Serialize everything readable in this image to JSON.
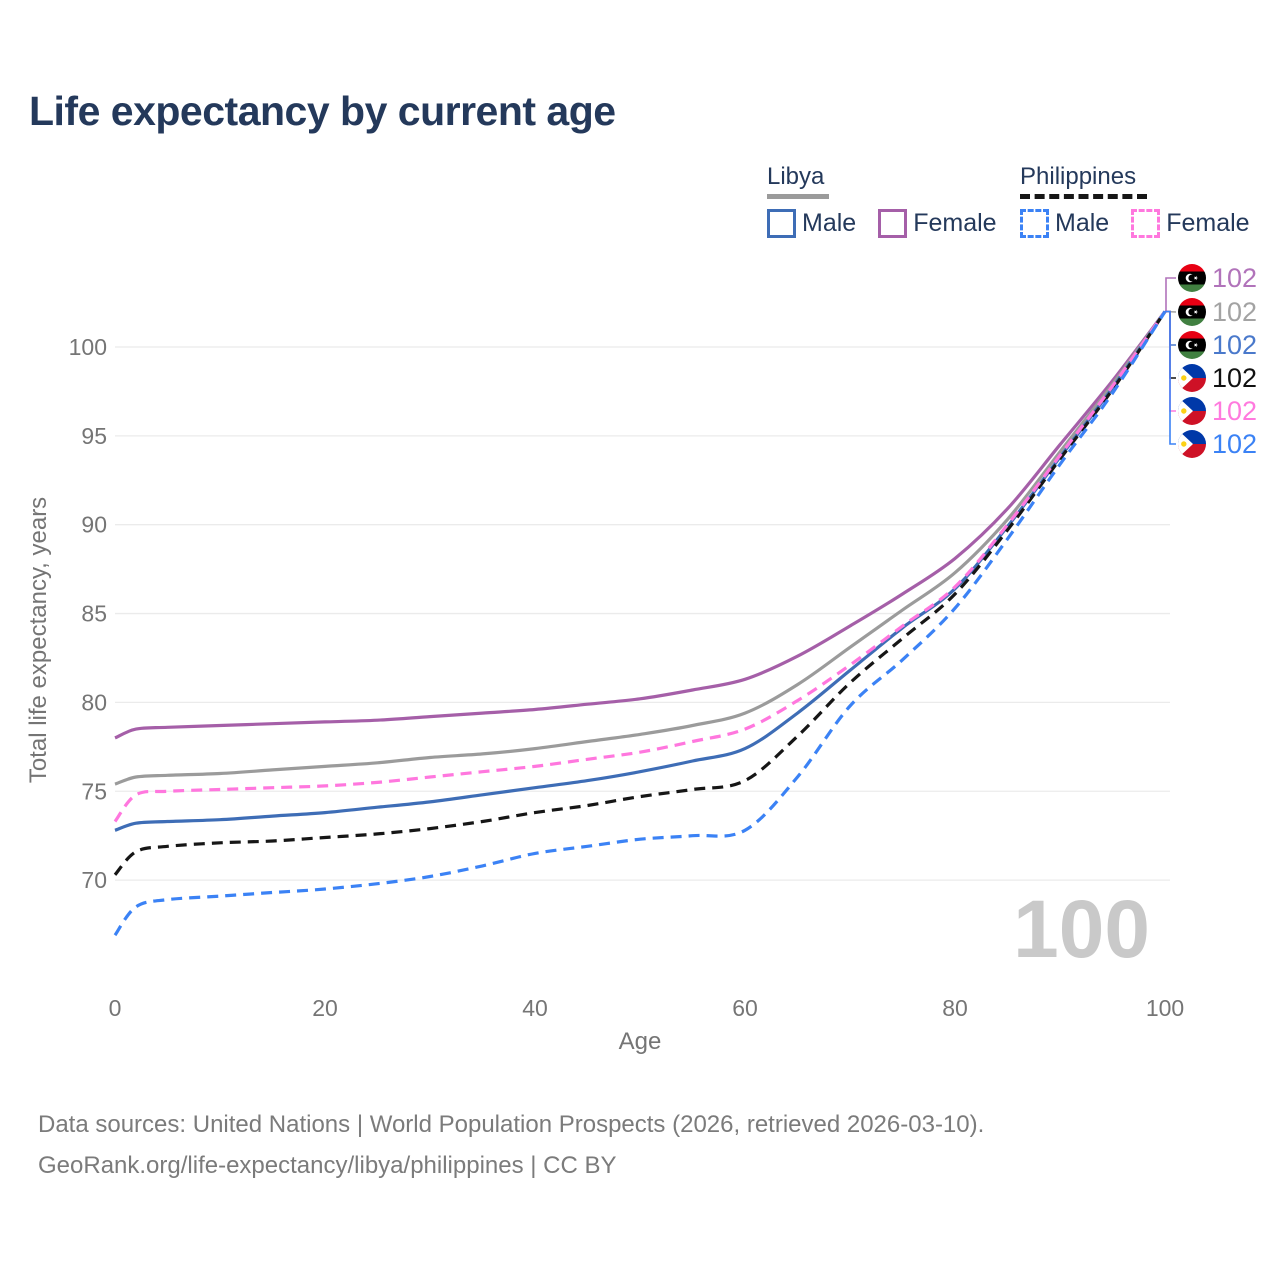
{
  "title": "Life expectancy by current age",
  "watermark": "100",
  "legend": {
    "libya": {
      "label": "Libya",
      "male": "Male",
      "female": "Female"
    },
    "philippines": {
      "label": "Philippines",
      "male": "Male",
      "female": "Female"
    }
  },
  "footer": {
    "line1": "Data sources: United Nations | World Population Prospects (2026, retrieved 2026-03-10).",
    "line2": "GeoRank.org/life-expectancy/libya/philippines | CC BY"
  },
  "colors": {
    "libya_female": "#a55fa8",
    "libya_both": "#9b9b9b",
    "libya_male": "#3e6db6",
    "ph_female": "#ff77de",
    "ph_both": "#161616",
    "ph_male": "#3b82f5",
    "title_text": "#24395b",
    "axis_text": "#757575",
    "grid": "#ebebeb",
    "watermark": "#c9c9c9",
    "footer_text": "#7b7b7b"
  },
  "chart_data": {
    "type": "line",
    "title": "Life expectancy by current age",
    "xlabel": "Age",
    "ylabel": "Total life expectancy, years",
    "x_ticks": [
      0,
      20,
      40,
      60,
      80,
      100
    ],
    "y_ticks": [
      70,
      75,
      80,
      85,
      90,
      95,
      100
    ],
    "xlim": [
      0,
      100
    ],
    "ylim": [
      66,
      103
    ],
    "grid": "horizontal-only",
    "legend_position": "top-right",
    "hover_age_indicator": "100",
    "x": [
      0,
      2,
      5,
      10,
      15,
      20,
      25,
      30,
      35,
      40,
      45,
      50,
      55,
      60,
      65,
      70,
      75,
      80,
      85,
      90,
      95,
      100
    ],
    "series": [
      {
        "name": "Libya Female",
        "key": "libya_female",
        "country": "Libya",
        "sex": "Female",
        "style": "solid",
        "color": "#a55fa8",
        "end_value": 102,
        "values": [
          78.0,
          78.5,
          78.6,
          78.7,
          78.8,
          78.9,
          79.0,
          79.2,
          79.4,
          79.6,
          79.9,
          80.2,
          80.7,
          81.3,
          82.6,
          84.3,
          86.1,
          88.1,
          90.9,
          94.5,
          98.1,
          102
        ]
      },
      {
        "name": "Libya Both sexes",
        "key": "libya_both",
        "country": "Libya",
        "sex": "Both",
        "style": "solid",
        "color": "#9b9b9b",
        "end_value": 102,
        "values": [
          75.4,
          75.8,
          75.9,
          76.0,
          76.2,
          76.4,
          76.6,
          76.9,
          77.1,
          77.4,
          77.8,
          78.2,
          78.7,
          79.4,
          81.0,
          83.1,
          85.2,
          87.3,
          90.3,
          94.1,
          97.9,
          102
        ]
      },
      {
        "name": "Libya Male",
        "key": "libya_male",
        "country": "Libya",
        "sex": "Male",
        "style": "solid",
        "color": "#3e6db6",
        "end_value": 102,
        "values": [
          72.8,
          73.2,
          73.3,
          73.4,
          73.6,
          73.8,
          74.1,
          74.4,
          74.8,
          75.2,
          75.6,
          76.1,
          76.7,
          77.4,
          79.4,
          81.8,
          84.2,
          86.4,
          89.9,
          93.8,
          97.7,
          102
        ]
      },
      {
        "name": "Philippines Both sexes",
        "key": "ph_both",
        "country": "Philippines",
        "sex": "Both",
        "style": "dashed",
        "color": "#161616",
        "end_value": 102,
        "values": [
          70.3,
          71.6,
          71.9,
          72.1,
          72.2,
          72.4,
          72.6,
          72.9,
          73.3,
          73.8,
          74.2,
          74.7,
          75.1,
          75.6,
          78.1,
          81.1,
          83.6,
          86.1,
          89.7,
          93.7,
          97.6,
          102
        ]
      },
      {
        "name": "Philippines Female",
        "key": "ph_female",
        "country": "Philippines",
        "sex": "Female",
        "style": "dashed",
        "color": "#ff77de",
        "end_value": 102,
        "values": [
          73.3,
          74.8,
          75.0,
          75.1,
          75.2,
          75.3,
          75.5,
          75.8,
          76.1,
          76.4,
          76.8,
          77.2,
          77.8,
          78.5,
          80.1,
          82.1,
          84.3,
          86.5,
          90.0,
          93.9,
          97.8,
          102
        ]
      },
      {
        "name": "Philippines Male",
        "key": "ph_male",
        "country": "Philippines",
        "sex": "Male",
        "style": "dashed",
        "color": "#3b82f5",
        "end_value": 102,
        "values": [
          66.9,
          68.5,
          68.9,
          69.1,
          69.3,
          69.5,
          69.8,
          70.2,
          70.8,
          71.5,
          71.9,
          72.3,
          72.5,
          72.8,
          75.8,
          79.8,
          82.4,
          85.3,
          89.2,
          93.4,
          97.4,
          102
        ]
      }
    ]
  },
  "end_labels": [
    {
      "series": "libya_female",
      "flag": "libya",
      "value": "102",
      "color": "#b173ba"
    },
    {
      "series": "libya_both",
      "flag": "libya",
      "value": "102",
      "color": "#a3a3a3"
    },
    {
      "series": "libya_male",
      "flag": "libya",
      "value": "102",
      "color": "#4a79cb"
    },
    {
      "series": "ph_both",
      "flag": "ph",
      "value": "102",
      "color": "#111111"
    },
    {
      "series": "ph_female",
      "flag": "ph",
      "value": "102",
      "color": "#ff7ade"
    },
    {
      "series": "ph_male",
      "flag": "ph",
      "value": "102",
      "color": "#3b82f5"
    }
  ]
}
